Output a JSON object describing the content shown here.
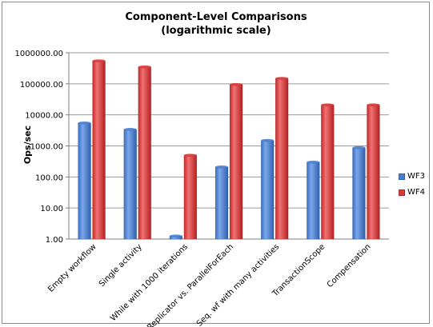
{
  "chart_data": {
    "type": "bar",
    "title": "Component-Level Comparisons",
    "subtitle": "(logarithmic scale)",
    "ylabel": "Ops/sec",
    "xlabel": "",
    "yscale": "log",
    "ylim": [
      1,
      1000000
    ],
    "yticks": [
      "1.00",
      "10.00",
      "100.00",
      "1000.00",
      "10000.00",
      "100000.00",
      "1000000.00"
    ],
    "grid": true,
    "legend_position": "right",
    "categories": [
      "Empty workflow",
      "Single activity",
      "While with 1000 iterations",
      "Replicator vs. ParallelForEach",
      "Seq. wf with many activities",
      "TransactionScope",
      "Compensation"
    ],
    "series": [
      {
        "name": "WF3",
        "color": "#4a7fd0",
        "values": [
          5500,
          3400,
          1.25,
          210,
          1500,
          300,
          880
        ]
      },
      {
        "name": "WF4",
        "color": "#d93a3a",
        "values": [
          550000,
          350000,
          500,
          95000,
          150000,
          21000,
          21000
        ]
      }
    ]
  }
}
